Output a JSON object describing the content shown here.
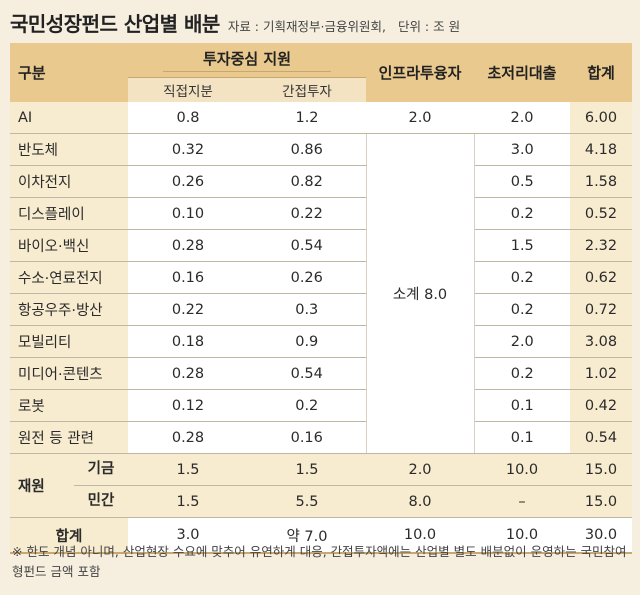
{
  "title": "국민성장펀드 산업별 배분",
  "source": "자료 : 기획재정부·금융위원회,",
  "unit": "단위 : 조 원",
  "headers": {
    "category": "구분",
    "invest": "투자중심 지원",
    "direct": "직접지분",
    "indirect": "간접투자",
    "infra": "인프라투융자",
    "loan": "초저리대출",
    "total": "합계"
  },
  "rows": [
    {
      "name": "AI",
      "direct": "0.8",
      "indirect": "1.2",
      "infra": "2.0",
      "loan": "2.0",
      "total": "6.00"
    },
    {
      "name": "반도체",
      "direct": "0.32",
      "indirect": "0.86",
      "loan": "3.0",
      "total": "4.18"
    },
    {
      "name": "이차전지",
      "direct": "0.26",
      "indirect": "0.82",
      "loan": "0.5",
      "total": "1.58"
    },
    {
      "name": "디스플레이",
      "direct": "0.10",
      "indirect": "0.22",
      "loan": "0.2",
      "total": "0.52"
    },
    {
      "name": "바이오·백신",
      "direct": "0.28",
      "indirect": "0.54",
      "loan": "1.5",
      "total": "2.32"
    },
    {
      "name": "수소·연료전지",
      "direct": "0.16",
      "indirect": "0.26",
      "loan": "0.2",
      "total": "0.62"
    },
    {
      "name": "항공우주·방산",
      "direct": "0.22",
      "indirect": "0.3",
      "loan": "0.2",
      "total": "0.72"
    },
    {
      "name": "모빌리티",
      "direct": "0.18",
      "indirect": "0.9",
      "loan": "2.0",
      "total": "3.08"
    },
    {
      "name": "미디어·콘텐츠",
      "direct": "0.28",
      "indirect": "0.54",
      "loan": "0.2",
      "total": "1.02"
    },
    {
      "name": "로봇",
      "direct": "0.12",
      "indirect": "0.2",
      "loan": "0.1",
      "total": "0.42"
    },
    {
      "name": "원전 등 관련",
      "direct": "0.28",
      "indirect": "0.16",
      "loan": "0.1",
      "total": "0.54"
    }
  ],
  "infra_merged": "소계 8.0",
  "funding": {
    "label": "재원",
    "rows": [
      {
        "name": "기금",
        "direct": "1.5",
        "indirect": "1.5",
        "infra": "2.0",
        "loan": "10.0",
        "total": "15.0"
      },
      {
        "name": "민간",
        "direct": "1.5",
        "indirect": "5.5",
        "infra": "8.0",
        "loan": "–",
        "total": "15.0"
      }
    ]
  },
  "grand_total": {
    "name": "합계",
    "direct": "3.0",
    "indirect": "약 7.0",
    "infra": "10.0",
    "loan": "10.0",
    "total": "30.0"
  },
  "note": "※ 한도 개념 아니며, 산업현장 수요에 맞추어 유연하게 대응, 간접투자액에는 산업별 별도 배분없이 운영하는 국민참여형펀드 금액 포함"
}
